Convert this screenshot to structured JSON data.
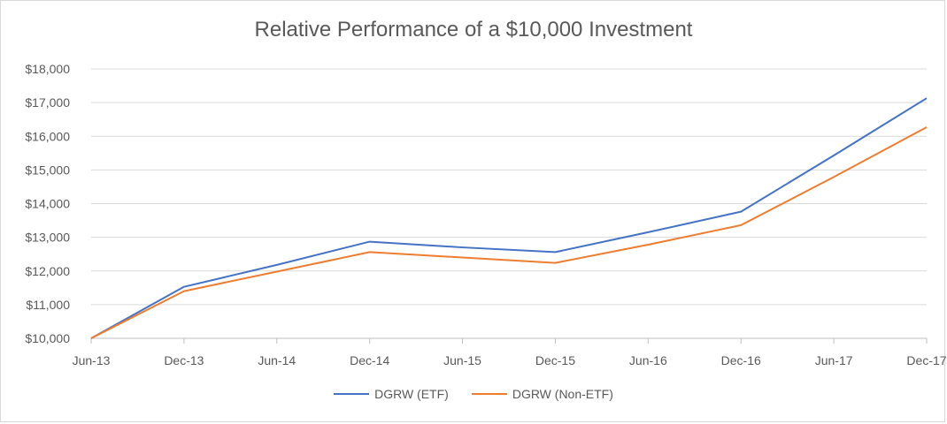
{
  "chart_data": {
    "type": "line",
    "title": "Relative Performance  of a $10,000 Investment",
    "xlabel": "",
    "ylabel": "",
    "x": [
      "Jun-13",
      "Dec-13",
      "Jun-14",
      "Dec-14",
      "Jun-15",
      "Dec-15",
      "Jun-16",
      "Dec-16",
      "Jun-17",
      "Dec-17"
    ],
    "ylim": [
      10000,
      18000
    ],
    "yticks": [
      10000,
      11000,
      12000,
      13000,
      14000,
      15000,
      16000,
      17000,
      18000
    ],
    "ytick_labels": [
      "$10,000",
      "$11,000",
      "$12,000",
      "$13,000",
      "$14,000",
      "$15,000",
      "$16,000",
      "$17,000",
      "$18,000"
    ],
    "grid": "horizontal",
    "legend_position": "bottom",
    "series": [
      {
        "name": "DGRW (ETF)",
        "color": "#4472c4",
        "values": [
          10000,
          11530,
          12180,
          12870,
          12700,
          12560,
          13150,
          13760,
          15430,
          17130
        ]
      },
      {
        "name": "DGRW (Non-ETF)",
        "color": "#ed7d31",
        "values": [
          10000,
          11400,
          11980,
          12560,
          12400,
          12240,
          12780,
          13360,
          14790,
          16270
        ]
      }
    ]
  }
}
